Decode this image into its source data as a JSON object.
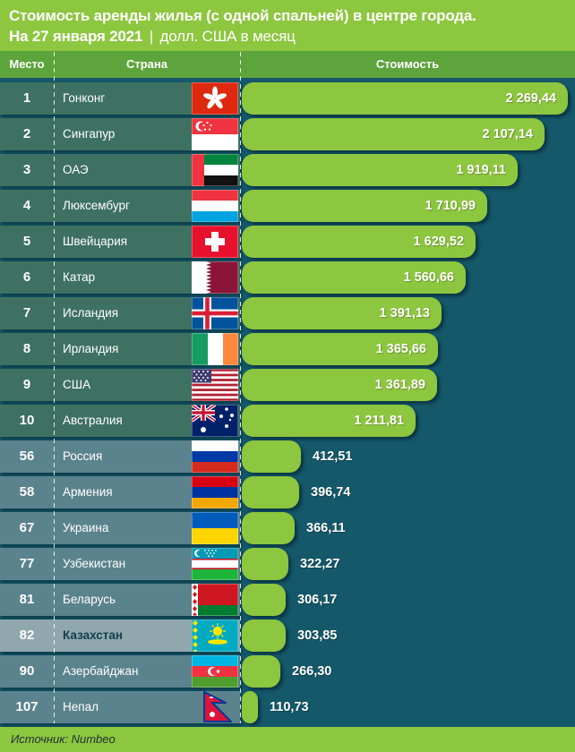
{
  "title": {
    "line1": "Стоимость аренды жилья (с одной спальней) в центре города.",
    "date_bold": "На 27 января 2021",
    "separator": "|",
    "units": "долл. США в месяц"
  },
  "columns": {
    "rank": "Место",
    "country": "Страна",
    "value": "Стоимость"
  },
  "source": "Источник: Numbeo",
  "colors": {
    "page_background": "#14586a",
    "title_band": "#8dc63f",
    "header_band": "#5ea43c",
    "bar": "#8dc63f",
    "band_top10": "#3e7161",
    "band_rest": "#5b838d",
    "band_highlight": "#8fa7ad",
    "text_white": "#ffffff",
    "highlight_text": "#16404f"
  },
  "chart_data": {
    "type": "bar",
    "orientation": "horizontal",
    "title": "Стоимость аренды жилья (с одной спальней) в центре города. На 27 января 2021, долл. США в месяц",
    "categories": [
      "Гонконг",
      "Сингапур",
      "ОАЭ",
      "Люксембург",
      "Швейцария",
      "Катар",
      "Исландия",
      "Ирландия",
      "США",
      "Австралия",
      "Россия",
      "Армения",
      "Украина",
      "Узбекистан",
      "Беларусь",
      "Казахстан",
      "Азербайджан",
      "Непал"
    ],
    "ranks": [
      1,
      2,
      3,
      4,
      5,
      6,
      7,
      8,
      9,
      10,
      56,
      58,
      67,
      77,
      81,
      82,
      90,
      107
    ],
    "values": [
      2269.44,
      2107.14,
      1919.11,
      1710.99,
      1629.52,
      1560.66,
      1391.13,
      1365.66,
      1361.89,
      1211.81,
      412.51,
      396.74,
      366.11,
      322.27,
      306.17,
      303.85,
      266.3,
      110.73
    ],
    "value_labels": [
      "2 269,44",
      "2 107,14",
      "1 919,11",
      "1 710,99",
      "1 629,52",
      "1 560,66",
      "1 391,13",
      "1 365,66",
      "1 361,89",
      "1 211,81",
      "412,51",
      "396,74",
      "366,11",
      "322,27",
      "306,17",
      "303,85",
      "266,30",
      "110,73"
    ],
    "xlim": [
      0,
      2269.44
    ],
    "highlighted_category": "Казахстан",
    "source": "Numbeo",
    "grid": false,
    "legend": false
  },
  "rows": [
    {
      "rank": "1",
      "country": "Гонконг",
      "flag": "hong-kong",
      "value": 2269.44,
      "label": "2 269,44",
      "group": "top"
    },
    {
      "rank": "2",
      "country": "Сингапур",
      "flag": "singapore",
      "value": 2107.14,
      "label": "2 107,14",
      "group": "top"
    },
    {
      "rank": "3",
      "country": "ОАЭ",
      "flag": "uae",
      "value": 1919.11,
      "label": "1 919,11",
      "group": "top"
    },
    {
      "rank": "4",
      "country": "Люксембург",
      "flag": "luxembourg",
      "value": 1710.99,
      "label": "1 710,99",
      "group": "top"
    },
    {
      "rank": "5",
      "country": "Швейцария",
      "flag": "switzerland",
      "value": 1629.52,
      "label": "1 629,52",
      "group": "top"
    },
    {
      "rank": "6",
      "country": "Катар",
      "flag": "qatar",
      "value": 1560.66,
      "label": "1 560,66",
      "group": "top"
    },
    {
      "rank": "7",
      "country": "Исландия",
      "flag": "iceland",
      "value": 1391.13,
      "label": "1 391,13",
      "group": "top"
    },
    {
      "rank": "8",
      "country": "Ирландия",
      "flag": "ireland",
      "value": 1365.66,
      "label": "1 365,66",
      "group": "top"
    },
    {
      "rank": "9",
      "country": "США",
      "flag": "usa",
      "value": 1361.89,
      "label": "1 361,89",
      "group": "top"
    },
    {
      "rank": "10",
      "country": "Австралия",
      "flag": "australia",
      "value": 1211.81,
      "label": "1 211,81",
      "group": "top"
    },
    {
      "rank": "56",
      "country": "Россия",
      "flag": "russia",
      "value": 412.51,
      "label": "412,51",
      "group": "rest"
    },
    {
      "rank": "58",
      "country": "Армения",
      "flag": "armenia",
      "value": 396.74,
      "label": "396,74",
      "group": "rest"
    },
    {
      "rank": "67",
      "country": "Украина",
      "flag": "ukraine",
      "value": 366.11,
      "label": "366,11",
      "group": "rest"
    },
    {
      "rank": "77",
      "country": "Узбекистан",
      "flag": "uzbekistan",
      "value": 322.27,
      "label": "322,27",
      "group": "rest"
    },
    {
      "rank": "81",
      "country": "Беларусь",
      "flag": "belarus",
      "value": 306.17,
      "label": "306,17",
      "group": "rest"
    },
    {
      "rank": "82",
      "country": "Казахстан",
      "flag": "kazakhstan",
      "value": 303.85,
      "label": "303,85",
      "group": "rest",
      "highlight": true
    },
    {
      "rank": "90",
      "country": "Азербайджан",
      "flag": "azerbaijan",
      "value": 266.3,
      "label": "266,30",
      "group": "rest"
    },
    {
      "rank": "107",
      "country": "Непал",
      "flag": "nepal",
      "value": 110.73,
      "label": "110,73",
      "group": "rest"
    }
  ]
}
